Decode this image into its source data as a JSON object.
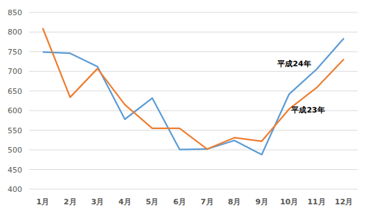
{
  "chart_data": {
    "type": "line",
    "categories": [
      "1月",
      "2月",
      "3月",
      "4月",
      "5月",
      "6月",
      "7月",
      "8月",
      "9月",
      "10月",
      "11月",
      "12月"
    ],
    "series": [
      {
        "name": "平成24年",
        "color": "#5b9bd5",
        "values": [
          749,
          746,
          712,
          578,
          632,
          501,
          502,
          524,
          488,
          642,
          705,
          784
        ]
      },
      {
        "name": "平成23年",
        "color": "#ed7d31",
        "values": [
          810,
          634,
          707,
          615,
          555,
          555,
          502,
          531,
          522,
          604,
          658,
          731
        ]
      }
    ],
    "ylim": [
      400,
      850
    ],
    "yticks": [
      400,
      450,
      500,
      550,
      600,
      650,
      700,
      750,
      800,
      850
    ],
    "grid": true
  }
}
